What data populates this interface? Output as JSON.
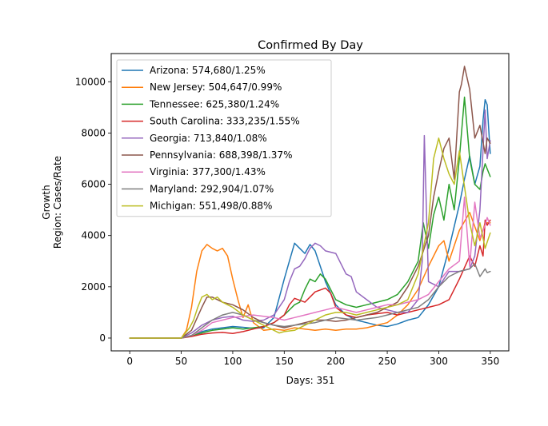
{
  "chart_data": {
    "type": "line",
    "title": "Confirmed By Day",
    "xlabel": "Days: 351",
    "ylabel_lines": [
      "Growth",
      "Region: Cases/Rate"
    ],
    "xlim": [
      -18,
      368
    ],
    "ylim": [
      -500,
      11100
    ],
    "x_ticks": [
      0,
      50,
      100,
      150,
      200,
      250,
      300,
      350
    ],
    "y_ticks": [
      0,
      2000,
      4000,
      6000,
      8000,
      10000
    ],
    "grid": false,
    "legend_position": "top-left",
    "series": [
      {
        "name": "Arizona: 574,680/1.25%",
        "color": "#1f77b4",
        "x": [
          0,
          50,
          58,
          70,
          80,
          90,
          100,
          110,
          120,
          130,
          140,
          150,
          155,
          160,
          165,
          170,
          175,
          180,
          190,
          200,
          210,
          220,
          230,
          240,
          250,
          260,
          270,
          280,
          290,
          300,
          310,
          320,
          325,
          330,
          335,
          340,
          343,
          345,
          347,
          350
        ],
        "y": [
          0,
          0,
          80,
          250,
          350,
          400,
          450,
          420,
          380,
          400,
          800,
          2300,
          3000,
          3700,
          3500,
          3300,
          3650,
          3400,
          2200,
          1300,
          900,
          700,
          600,
          500,
          450,
          550,
          700,
          800,
          1300,
          2000,
          3500,
          5200,
          6200,
          7100,
          6000,
          6700,
          8500,
          9300,
          9100,
          7200
        ]
      },
      {
        "name": "New Jersey: 504,647/0.99%",
        "color": "#ff7f0e",
        "x": [
          0,
          50,
          55,
          60,
          65,
          70,
          75,
          80,
          85,
          90,
          95,
          100,
          105,
          110,
          115,
          120,
          130,
          140,
          150,
          160,
          170,
          180,
          190,
          200,
          210,
          220,
          230,
          240,
          250,
          260,
          270,
          280,
          290,
          300,
          305,
          310,
          320,
          330,
          340,
          345,
          350
        ],
        "y": [
          0,
          0,
          300,
          1200,
          2600,
          3400,
          3650,
          3500,
          3400,
          3500,
          3200,
          2300,
          1500,
          800,
          1300,
          600,
          300,
          350,
          300,
          400,
          350,
          300,
          350,
          300,
          350,
          350,
          400,
          500,
          600,
          900,
          1300,
          1900,
          2800,
          3600,
          3800,
          3000,
          4200,
          4900,
          3800,
          4500,
          4500
        ]
      },
      {
        "name": "Tennessee: 625,380/1.24%",
        "color": "#2ca02c",
        "x": [
          0,
          50,
          60,
          70,
          80,
          90,
          100,
          110,
          120,
          130,
          140,
          150,
          160,
          165,
          170,
          175,
          180,
          185,
          190,
          200,
          210,
          220,
          230,
          240,
          250,
          260,
          270,
          280,
          285,
          290,
          295,
          300,
          305,
          310,
          315,
          320,
          325,
          330,
          335,
          340,
          343,
          345,
          350
        ],
        "y": [
          0,
          0,
          100,
          200,
          300,
          350,
          400,
          350,
          400,
          450,
          600,
          900,
          1300,
          1400,
          1900,
          2300,
          2200,
          2500,
          2300,
          1500,
          1300,
          1200,
          1300,
          1400,
          1500,
          1700,
          2200,
          3000,
          4500,
          3500,
          4800,
          5500,
          4600,
          6000,
          5000,
          7000,
          9400,
          7000,
          6000,
          5800,
          6500,
          6800,
          6300
        ]
      },
      {
        "name": "South Carolina: 333,235/1.55%",
        "color": "#d62728",
        "x": [
          0,
          50,
          60,
          70,
          80,
          90,
          100,
          110,
          120,
          130,
          140,
          150,
          155,
          160,
          170,
          180,
          190,
          195,
          200,
          210,
          220,
          230,
          240,
          250,
          260,
          270,
          280,
          290,
          300,
          310,
          320,
          330,
          335,
          340,
          343,
          345,
          347,
          350
        ],
        "y": [
          0,
          0,
          60,
          150,
          200,
          220,
          180,
          250,
          350,
          450,
          600,
          900,
          1300,
          1550,
          1400,
          1800,
          1950,
          1750,
          1200,
          900,
          800,
          900,
          950,
          1000,
          900,
          1000,
          1100,
          1200,
          1300,
          1500,
          2300,
          3200,
          2800,
          3600,
          3200,
          4600,
          4400,
          4600
        ]
      },
      {
        "name": "Georgia: 713,840/1.08%",
        "color": "#9467bd",
        "x": [
          0,
          50,
          60,
          70,
          80,
          90,
          100,
          110,
          120,
          130,
          140,
          150,
          155,
          160,
          165,
          170,
          175,
          180,
          185,
          190,
          200,
          210,
          215,
          220,
          230,
          240,
          250,
          260,
          270,
          280,
          284,
          286,
          290,
          300,
          310,
          320,
          330,
          335,
          340,
          345,
          347,
          350
        ],
        "y": [
          0,
          0,
          200,
          500,
          700,
          800,
          850,
          700,
          650,
          700,
          900,
          1500,
          2200,
          2700,
          2800,
          3100,
          3500,
          3700,
          3600,
          3400,
          3300,
          2500,
          2400,
          1800,
          1500,
          1200,
          1100,
          1000,
          1000,
          1500,
          3000,
          7900,
          2200,
          2000,
          2600,
          2600,
          2700,
          3200,
          5000,
          8900,
          7000,
          7700
        ]
      },
      {
        "name": "Pennsylvania: 688,398/1.37%",
        "color": "#8c564b",
        "x": [
          0,
          50,
          60,
          70,
          75,
          80,
          90,
          100,
          110,
          120,
          130,
          140,
          150,
          160,
          170,
          180,
          190,
          200,
          210,
          220,
          230,
          240,
          250,
          260,
          270,
          280,
          290,
          295,
          300,
          305,
          310,
          315,
          320,
          322,
          325,
          330,
          335,
          340,
          345,
          347,
          350
        ],
        "y": [
          0,
          0,
          300,
          1200,
          1600,
          1600,
          1400,
          1300,
          1100,
          800,
          600,
          500,
          400,
          500,
          600,
          700,
          700,
          650,
          700,
          800,
          900,
          1000,
          1200,
          1400,
          2000,
          2800,
          4000,
          5500,
          6500,
          7400,
          7800,
          6200,
          9600,
          9900,
          10600,
          9700,
          7800,
          8300,
          7200,
          7800,
          7600
        ]
      },
      {
        "name": "Virginia: 377,300/1.43%",
        "color": "#e377c2",
        "x": [
          0,
          50,
          60,
          70,
          80,
          90,
          100,
          110,
          120,
          130,
          140,
          150,
          160,
          170,
          180,
          190,
          200,
          210,
          220,
          230,
          240,
          250,
          260,
          270,
          280,
          290,
          300,
          310,
          320,
          325,
          330,
          335,
          340,
          343,
          345,
          347,
          350
        ],
        "y": [
          0,
          0,
          100,
          300,
          600,
          700,
          800,
          850,
          900,
          850,
          800,
          700,
          800,
          900,
          1000,
          1100,
          1200,
          1100,
          1000,
          1100,
          1200,
          1300,
          1300,
          1400,
          1500,
          1700,
          2200,
          2700,
          3000,
          5500,
          2800,
          5300,
          3900,
          4200,
          4400,
          4700,
          4400
        ]
      },
      {
        "name": "Maryland: 292,904/1.07%",
        "color": "#7f7f7f",
        "x": [
          0,
          50,
          60,
          70,
          80,
          90,
          100,
          110,
          120,
          130,
          140,
          150,
          160,
          170,
          180,
          190,
          200,
          210,
          220,
          230,
          240,
          250,
          260,
          270,
          280,
          290,
          300,
          310,
          320,
          330,
          335,
          340,
          345,
          347,
          350
        ],
        "y": [
          0,
          0,
          100,
          400,
          700,
          900,
          1000,
          900,
          700,
          600,
          500,
          450,
          500,
          550,
          600,
          700,
          800,
          750,
          700,
          750,
          800,
          900,
          1000,
          1100,
          1200,
          1500,
          2000,
          2400,
          2600,
          2700,
          2900,
          2400,
          2700,
          2550,
          2600
        ]
      },
      {
        "name": "Michigan: 551,498/0.88%",
        "color": "#bcbd22",
        "x": [
          0,
          50,
          58,
          62,
          66,
          70,
          75,
          80,
          85,
          90,
          95,
          100,
          110,
          120,
          130,
          140,
          145,
          150,
          160,
          170,
          180,
          190,
          200,
          210,
          220,
          230,
          240,
          250,
          260,
          270,
          280,
          285,
          290,
          295,
          300,
          305,
          310,
          315,
          320,
          330,
          335,
          340,
          345,
          350
        ],
        "y": [
          0,
          0,
          400,
          700,
          1200,
          1600,
          1700,
          1500,
          1600,
          1400,
          1300,
          1200,
          900,
          700,
          500,
          300,
          200,
          250,
          300,
          500,
          700,
          900,
          1000,
          1000,
          900,
          1000,
          1100,
          1200,
          1300,
          1500,
          2500,
          3500,
          4500,
          7000,
          7800,
          7000,
          6400,
          6000,
          7300,
          4500,
          3600,
          4500,
          3500,
          4100
        ]
      }
    ]
  }
}
